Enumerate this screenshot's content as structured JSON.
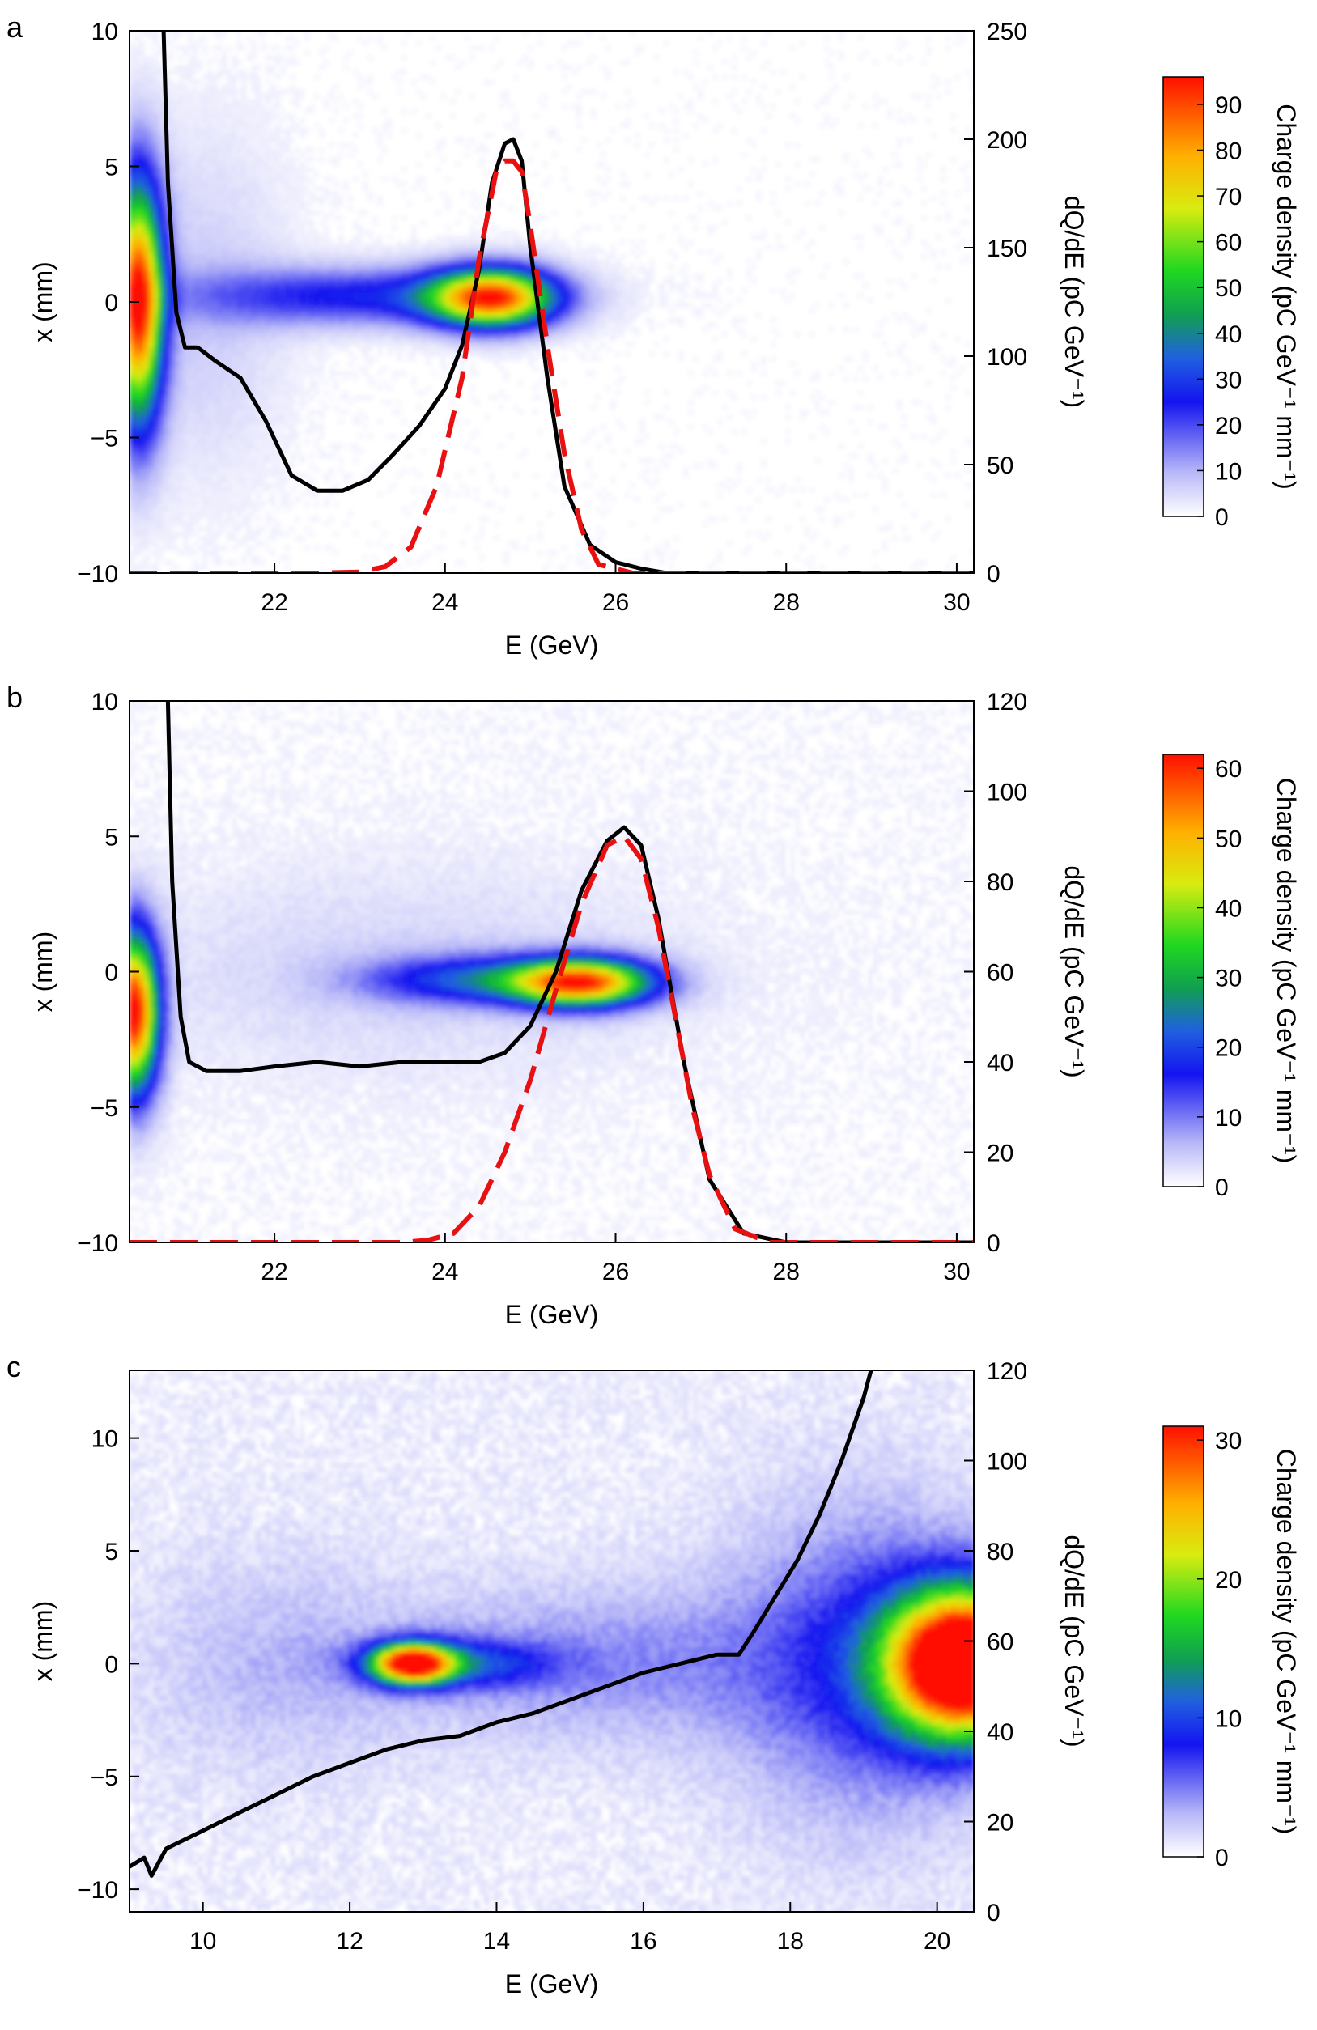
{
  "chart_data": [
    {
      "panel": "a",
      "type": "heatmap",
      "xlabel": "E (GeV)",
      "ylabel": "x (mm)",
      "y2label": "dQ/dE (pC GeV⁻¹)",
      "cbar_label": "Charge density (pC GeV⁻¹ mm⁻¹)",
      "xlim": [
        20.3,
        30.2
      ],
      "ylim": [
        -10,
        10
      ],
      "y2lim": [
        0,
        250
      ],
      "clim": [
        0,
        96
      ],
      "xticks": [
        "22",
        "24",
        "26",
        "28",
        "30"
      ],
      "yticks": [
        "10",
        "5",
        "0",
        "−5",
        "−10"
      ],
      "y2ticks": [
        "250",
        "200",
        "150",
        "100",
        "50",
        "0"
      ],
      "cticks": [
        "0",
        "10",
        "20",
        "30",
        "40",
        "50",
        "60",
        "70",
        "80",
        "90"
      ],
      "series": [
        {
          "style": "solid-black",
          "x": [
            20.7,
            20.75,
            20.85,
            20.95,
            21.1,
            21.3,
            21.6,
            21.9,
            22.2,
            22.5,
            22.8,
            23.1,
            23.4,
            23.7,
            24.0,
            24.2,
            24.4,
            24.55,
            24.7,
            24.8,
            24.9,
            25.0,
            25.2,
            25.4,
            25.7,
            26.0,
            26.3,
            26.6,
            27.0,
            28.0,
            29.0,
            30.2
          ],
          "y": [
            250,
            180,
            120,
            104,
            104,
            98,
            90,
            70,
            45,
            38,
            38,
            43,
            55,
            68,
            85,
            105,
            140,
            180,
            198,
            200,
            190,
            150,
            90,
            40,
            13,
            5,
            2,
            0,
            0,
            0,
            0,
            0
          ]
        },
        {
          "style": "dashed-red",
          "x": [
            20.3,
            21.5,
            22.5,
            23.0,
            23.3,
            23.6,
            23.9,
            24.2,
            24.4,
            24.6,
            24.7,
            24.8,
            24.9,
            25.0,
            25.2,
            25.4,
            25.6,
            25.8,
            26.2,
            27.0,
            28.0,
            30.2
          ],
          "y": [
            0,
            0,
            0,
            0.5,
            3,
            12,
            40,
            90,
            145,
            185,
            190,
            190,
            185,
            160,
            105,
            55,
            20,
            4,
            0,
            0,
            0,
            0
          ]
        }
      ],
      "blobs": [
        {
          "cx": 20.4,
          "cy": 0,
          "rx": 0.3,
          "ry": 4.5,
          "peak": 96
        },
        {
          "cx": 24.55,
          "cy": 0.15,
          "rx": 0.75,
          "ry": 1.1,
          "peak": 85
        },
        {
          "cx": 23.0,
          "cy": 0.2,
          "rx": 2.0,
          "ry": 1.1,
          "peak": 25
        },
        {
          "cx": 21.2,
          "cy": 0,
          "rx": 1.0,
          "ry": 6.5,
          "peak": 6
        }
      ]
    },
    {
      "panel": "b",
      "type": "heatmap",
      "xlabel": "E (GeV)",
      "ylabel": "x (mm)",
      "y2label": "dQ/dE (pC GeV⁻¹)",
      "cbar_label": "Charge density (pC GeV⁻¹ mm⁻¹)",
      "xlim": [
        20.3,
        30.2
      ],
      "ylim": [
        -10,
        10
      ],
      "y2lim": [
        0,
        120
      ],
      "clim": [
        0,
        62
      ],
      "xticks": [
        "22",
        "24",
        "26",
        "28",
        "30"
      ],
      "yticks": [
        "10",
        "5",
        "0",
        "−5",
        "−10"
      ],
      "y2ticks": [
        "120",
        "100",
        "80",
        "60",
        "40",
        "20",
        "0"
      ],
      "cticks": [
        "0",
        "10",
        "20",
        "30",
        "40",
        "50",
        "60"
      ],
      "series": [
        {
          "style": "solid-black",
          "x": [
            20.75,
            20.8,
            20.9,
            21.0,
            21.2,
            21.6,
            22.0,
            22.5,
            23.0,
            23.5,
            24.0,
            24.4,
            24.7,
            25.0,
            25.3,
            25.6,
            25.9,
            26.1,
            26.3,
            26.5,
            26.8,
            27.1,
            27.5,
            28.0,
            29.0,
            30.2
          ],
          "y": [
            120,
            80,
            50,
            40,
            38,
            38,
            39,
            40,
            39,
            40,
            40,
            40,
            42,
            48,
            60,
            78,
            89,
            92,
            88,
            72,
            40,
            14,
            2,
            0,
            0,
            0
          ]
        },
        {
          "style": "dashed-red",
          "x": [
            20.3,
            22.0,
            23.0,
            23.5,
            23.8,
            24.1,
            24.4,
            24.7,
            25.0,
            25.3,
            25.6,
            25.9,
            26.1,
            26.3,
            26.5,
            26.7,
            26.9,
            27.1,
            27.4,
            27.8,
            30.2
          ],
          "y": [
            0,
            0,
            0,
            0,
            0.5,
            2,
            8,
            20,
            36,
            56,
            75,
            88,
            90,
            85,
            70,
            50,
            30,
            15,
            3,
            0,
            0
          ]
        }
      ],
      "blobs": [
        {
          "cx": 20.35,
          "cy": -1.5,
          "rx": 0.3,
          "ry": 3.0,
          "peak": 62
        },
        {
          "cx": 25.6,
          "cy": -0.4,
          "rx": 0.85,
          "ry": 0.9,
          "peak": 55
        },
        {
          "cx": 24.3,
          "cy": -0.3,
          "rx": 1.3,
          "ry": 0.9,
          "peak": 18
        },
        {
          "cx": 23.5,
          "cy": 0,
          "rx": 3.5,
          "ry": 4.0,
          "peak": 3
        }
      ]
    },
    {
      "panel": "c",
      "type": "heatmap",
      "xlabel": "E (GeV)",
      "ylabel": "x (mm)",
      "y2label": "dQ/dE (pC GeV⁻¹)",
      "cbar_label": "Charge density (pC GeV⁻¹ mm⁻¹)",
      "xlim": [
        9.0,
        20.5
      ],
      "ylim": [
        -11,
        13
      ],
      "y2lim": [
        0,
        120
      ],
      "clim": [
        0,
        31
      ],
      "xticks": [
        "10",
        "12",
        "14",
        "16",
        "18",
        "20"
      ],
      "yticks": [
        "10",
        "5",
        "0",
        "−5",
        "−10"
      ],
      "y2ticks": [
        "120",
        "100",
        "80",
        "60",
        "40",
        "20",
        "0"
      ],
      "cticks": [
        "0",
        "10",
        "20",
        "30"
      ],
      "series": [
        {
          "style": "solid-black",
          "x": [
            9.0,
            9.2,
            9.3,
            9.5,
            10.0,
            10.5,
            11.0,
            11.5,
            12.0,
            12.5,
            13.0,
            13.5,
            14.0,
            14.5,
            15.0,
            15.5,
            16.0,
            16.5,
            17.0,
            17.3,
            17.5,
            17.8,
            18.1,
            18.4,
            18.7,
            19.0,
            19.1
          ],
          "y": [
            10,
            12,
            8,
            14,
            18,
            22,
            26,
            30,
            33,
            36,
            38,
            39,
            42,
            44,
            47,
            50,
            53,
            55,
            57,
            57,
            62,
            70,
            78,
            88,
            100,
            114,
            120
          ]
        }
      ],
      "blobs": [
        {
          "cx": 12.85,
          "cy": 0,
          "rx": 0.55,
          "ry": 0.9,
          "peak": 30
        },
        {
          "cx": 13.5,
          "cy": 0,
          "rx": 1.3,
          "ry": 1.1,
          "peak": 8
        },
        {
          "cx": 20.4,
          "cy": 0,
          "rx": 1.1,
          "ry": 3.3,
          "peak": 40
        },
        {
          "cx": 19.0,
          "cy": 0,
          "rx": 1.8,
          "ry": 7.0,
          "peak": 6
        },
        {
          "cx": 15.5,
          "cy": 0,
          "rx": 3.0,
          "ry": 3.5,
          "peak": 3.5
        },
        {
          "cx": 11.0,
          "cy": 0,
          "rx": 2.0,
          "ry": 5.0,
          "peak": 2
        }
      ]
    }
  ]
}
